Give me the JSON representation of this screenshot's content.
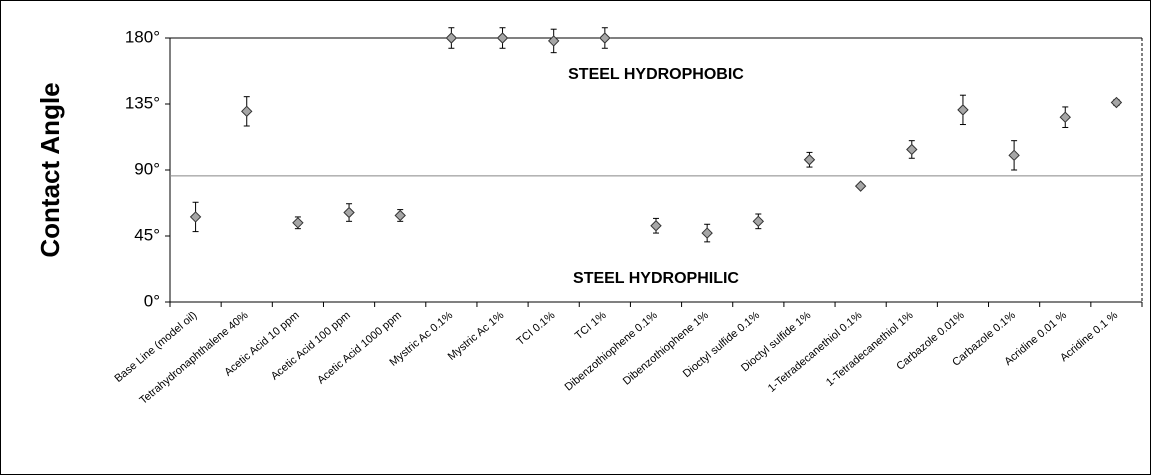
{
  "chart_data": {
    "type": "scatter",
    "y_label": "Contact Angle",
    "categories": [
      "Base Line (model oil)",
      "Tetrahydronaphthalene 40%",
      "Acetic Acid 10 ppm",
      "Acetic Acid 100 ppm",
      "Acetic Acid 1000 ppm",
      "Mystric Ac 0.1%",
      "Mystric Ac 1%",
      "TCI 0.1%",
      "TCI 1%",
      "Dibenzothiophene 0.1%",
      "Dibenzothiophene 1%",
      "Dioctyl sulfide  0.1%",
      "Dioctyl sulfide  1%",
      "1-Tetradecanethiol 0.1%",
      "1-Tetradecanethiol 1%",
      "Carbazole 0.01%",
      "Carbazole 0.1%",
      "Acridine 0.01 %",
      "Acridine 0.1 %"
    ],
    "series": [
      {
        "color": "#a6a6a6",
        "values": [
          58,
          130,
          54,
          61,
          59,
          180,
          180,
          178,
          180,
          52,
          47,
          55,
          97,
          79,
          104,
          131,
          100,
          126,
          136
        ],
        "errors": [
          10,
          10,
          4,
          6,
          4,
          7,
          7,
          8,
          7,
          5,
          6,
          5,
          5,
          1,
          6,
          10,
          10,
          7,
          2
        ]
      }
    ],
    "ylim": [
      0,
      180
    ],
    "yticks": [
      {
        "value": 0,
        "label": "0°"
      },
      {
        "value": 45,
        "label": "45°"
      },
      {
        "value": 90,
        "label": "90°"
      },
      {
        "value": 135,
        "label": "135°"
      },
      {
        "value": 180,
        "label": "180°"
      }
    ],
    "reference_line": 86,
    "annotations": [
      {
        "text": "STEEL HYDROPHOBIC",
        "value": 155
      },
      {
        "text": "STEEL HYDROPHILIC",
        "value": 16
      }
    ]
  }
}
